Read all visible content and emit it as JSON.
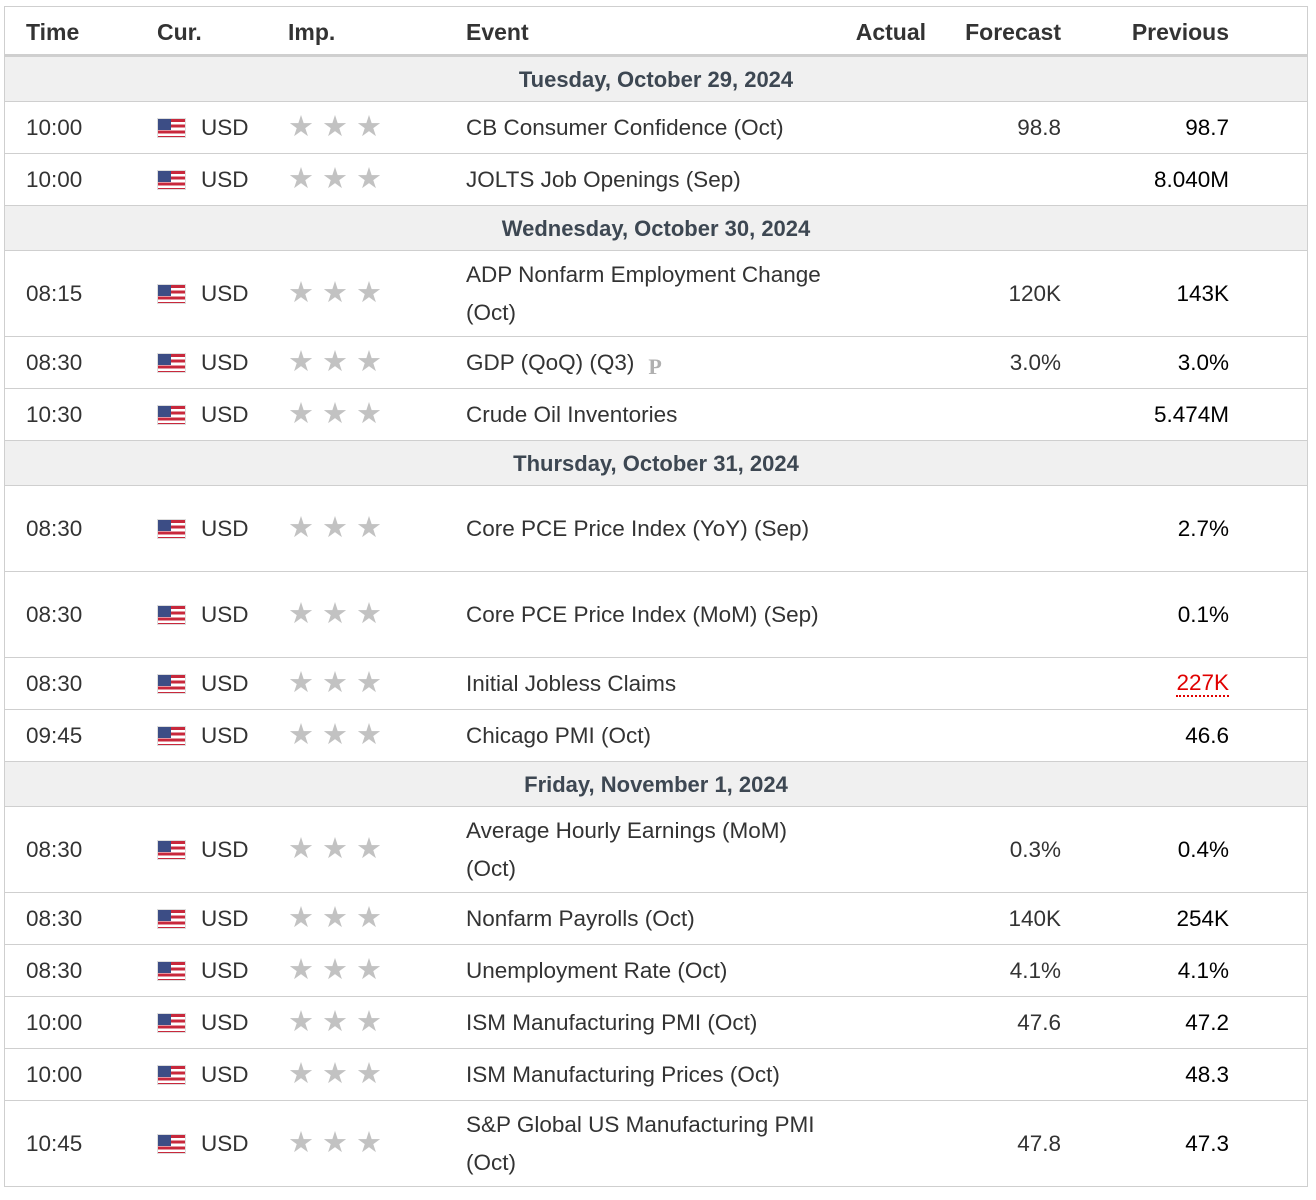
{
  "headers": {
    "time": "Time",
    "cur": "Cur.",
    "imp": "Imp.",
    "event": "Event",
    "actual": "Actual",
    "forecast": "Forecast",
    "previous": "Previous"
  },
  "icons": {
    "flag": "us-flag-icon",
    "star": "star-icon",
    "preliminary": "preliminary-p-icon"
  },
  "colors": {
    "star": "#c2c2c2",
    "revised": "#e00000",
    "day_bg": "#f0f0f0"
  },
  "days": [
    {
      "label": "Tuesday, October 29, 2024",
      "events": [
        {
          "time": "10:00",
          "cur": "USD",
          "stars": 3,
          "event": "CB Consumer Confidence (Oct)",
          "actual": "",
          "forecast": "98.8",
          "previous": "98.7"
        },
        {
          "time": "10:00",
          "cur": "USD",
          "stars": 3,
          "event": "JOLTS Job Openings (Sep)",
          "actual": "",
          "forecast": "",
          "previous": "8.040M"
        }
      ]
    },
    {
      "label": "Wednesday, October 30, 2024",
      "events": [
        {
          "time": "08:15",
          "cur": "USD",
          "stars": 3,
          "event": "ADP Nonfarm Employment Change (Oct)",
          "actual": "",
          "forecast": "120K",
          "previous": "143K",
          "tall": true
        },
        {
          "time": "08:30",
          "cur": "USD",
          "stars": 3,
          "event": "GDP (QoQ) (Q3)",
          "badge": "P",
          "actual": "",
          "forecast": "3.0%",
          "previous": "3.0%"
        },
        {
          "time": "10:30",
          "cur": "USD",
          "stars": 3,
          "event": "Crude Oil Inventories",
          "actual": "",
          "forecast": "",
          "previous": "5.474M"
        }
      ]
    },
    {
      "label": "Thursday, October 31, 2024",
      "events": [
        {
          "time": "08:30",
          "cur": "USD",
          "stars": 3,
          "event": "Core PCE Price Index (YoY) (Sep)",
          "actual": "",
          "forecast": "",
          "previous": "2.7%",
          "tall": true
        },
        {
          "time": "08:30",
          "cur": "USD",
          "stars": 3,
          "event": "Core PCE Price Index (MoM) (Sep)",
          "actual": "",
          "forecast": "",
          "previous": "0.1%",
          "tall": true
        },
        {
          "time": "08:30",
          "cur": "USD",
          "stars": 3,
          "event": "Initial Jobless Claims",
          "actual": "",
          "forecast": "",
          "previous": "227K",
          "revised": true
        },
        {
          "time": "09:45",
          "cur": "USD",
          "stars": 3,
          "event": "Chicago PMI (Oct)",
          "actual": "",
          "forecast": "",
          "previous": "46.6"
        }
      ]
    },
    {
      "label": "Friday, November 1, 2024",
      "events": [
        {
          "time": "08:30",
          "cur": "USD",
          "stars": 3,
          "event": "Average Hourly Earnings (MoM) (Oct)",
          "actual": "",
          "forecast": "0.3%",
          "previous": "0.4%",
          "tall": true
        },
        {
          "time": "08:30",
          "cur": "USD",
          "stars": 3,
          "event": "Nonfarm Payrolls (Oct)",
          "actual": "",
          "forecast": "140K",
          "previous": "254K"
        },
        {
          "time": "08:30",
          "cur": "USD",
          "stars": 3,
          "event": "Unemployment Rate (Oct)",
          "actual": "",
          "forecast": "4.1%",
          "previous": "4.1%"
        },
        {
          "time": "10:00",
          "cur": "USD",
          "stars": 3,
          "event": "ISM Manufacturing PMI (Oct)",
          "actual": "",
          "forecast": "47.6",
          "previous": "47.2"
        },
        {
          "time": "10:00",
          "cur": "USD",
          "stars": 3,
          "event": "ISM Manufacturing Prices (Oct)",
          "actual": "",
          "forecast": "",
          "previous": "48.3"
        },
        {
          "time": "10:45",
          "cur": "USD",
          "stars": 3,
          "event": "S&P Global US Manufacturing PMI (Oct)",
          "actual": "",
          "forecast": "47.8",
          "previous": "47.3",
          "tall": true
        }
      ]
    }
  ]
}
